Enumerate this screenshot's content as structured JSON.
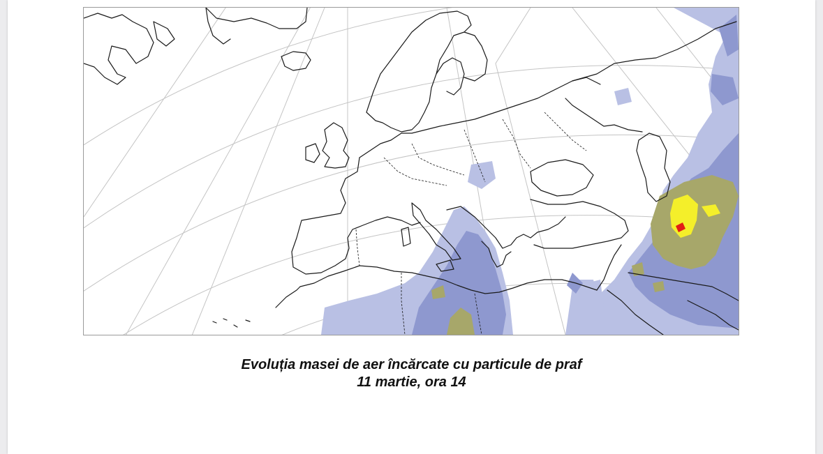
{
  "caption": {
    "line1": "Evoluția masei de aer încărcate cu particule de praf",
    "line2": "11 martie, ora 14"
  },
  "map": {
    "subject": "dust-laden air mass concentration",
    "colors": {
      "graticule": "#c4c4c4",
      "coastline": "#1a1a1a",
      "dust_light": "#b9c0e4",
      "dust_medium": "#8e98cf",
      "dust_olive": "#a7a76a",
      "dust_high": "#f4ef2a",
      "dust_peak": "#e21e16"
    }
  }
}
